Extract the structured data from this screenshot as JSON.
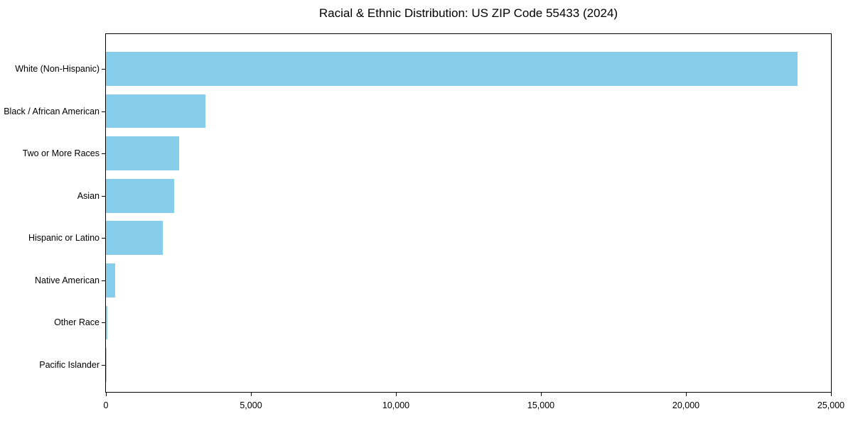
{
  "chart_data": {
    "type": "bar",
    "orientation": "horizontal",
    "title": "Racial & Ethnic Distribution: US ZIP Code 55433 (2024)",
    "categories": [
      "White (Non-Hispanic)",
      "Black / African American",
      "Two or More Races",
      "Asian",
      "Hispanic or Latino",
      "Native American",
      "Other Race",
      "Pacific Islander"
    ],
    "values": [
      23850,
      3420,
      2520,
      2350,
      1960,
      320,
      45,
      10
    ],
    "xlabel": "",
    "ylabel": "",
    "xlim": [
      0,
      25000
    ],
    "x_ticks": [
      0,
      5000,
      10000,
      15000,
      20000,
      25000
    ],
    "x_tick_labels": [
      "0",
      "5,000",
      "10,000",
      "15,000",
      "20,000",
      "25,000"
    ],
    "bar_color": "#87CEEB",
    "axis_color": "#000000",
    "text_color": "#000000",
    "background_color": "#ffffff",
    "grid": false,
    "legend": null
  }
}
